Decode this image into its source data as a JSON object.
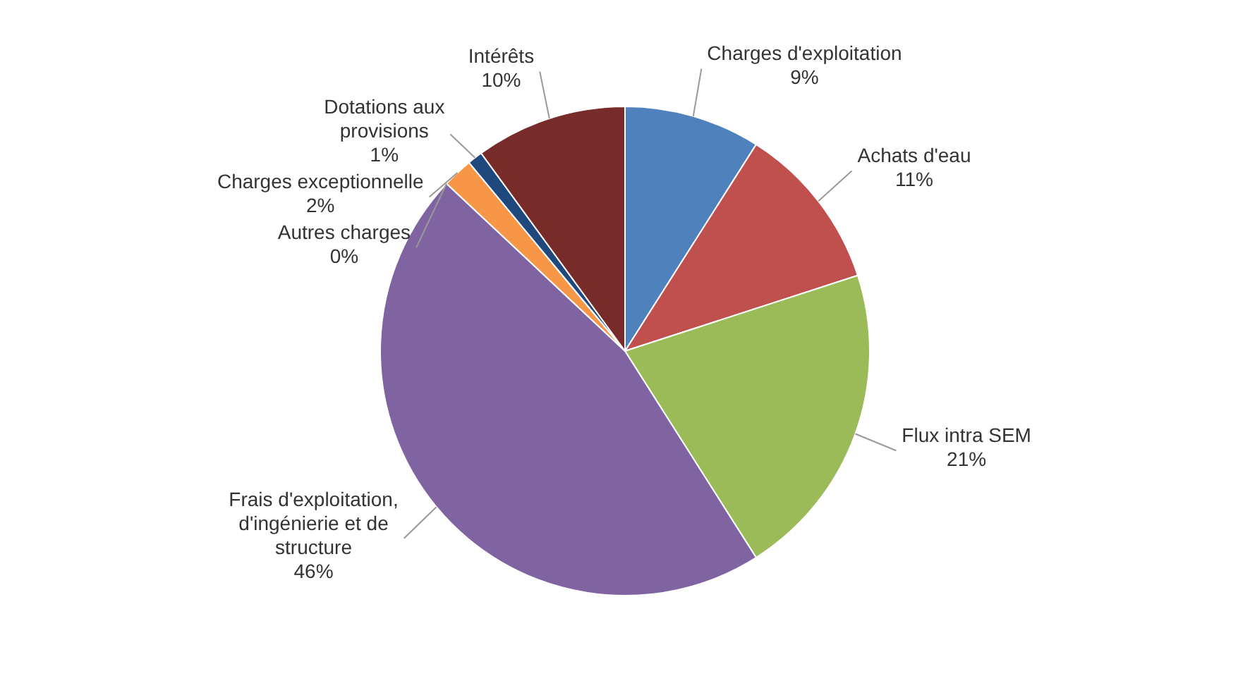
{
  "chart_data": {
    "type": "pie",
    "categories": [
      "Charges d'exploitation",
      "Achats d'eau",
      "Flux intra SEM",
      "Frais d'exploitation, d'ingénierie et de structure",
      "Autres charges",
      "Charges exceptionnelle",
      "Dotations aux provisions",
      "Intérêts"
    ],
    "values": [
      9,
      11,
      21,
      46,
      0,
      2,
      1,
      10
    ],
    "value_labels": [
      "9%",
      "11%",
      "21%",
      "46%",
      "0%",
      "2%",
      "1%",
      "10%"
    ],
    "colors": [
      "#4f81bd",
      "#c0504d",
      "#9bbb59",
      "#8064a2",
      "#4bacc6",
      "#f79646",
      "#1f497d",
      "#772c2a"
    ],
    "legend": false
  }
}
